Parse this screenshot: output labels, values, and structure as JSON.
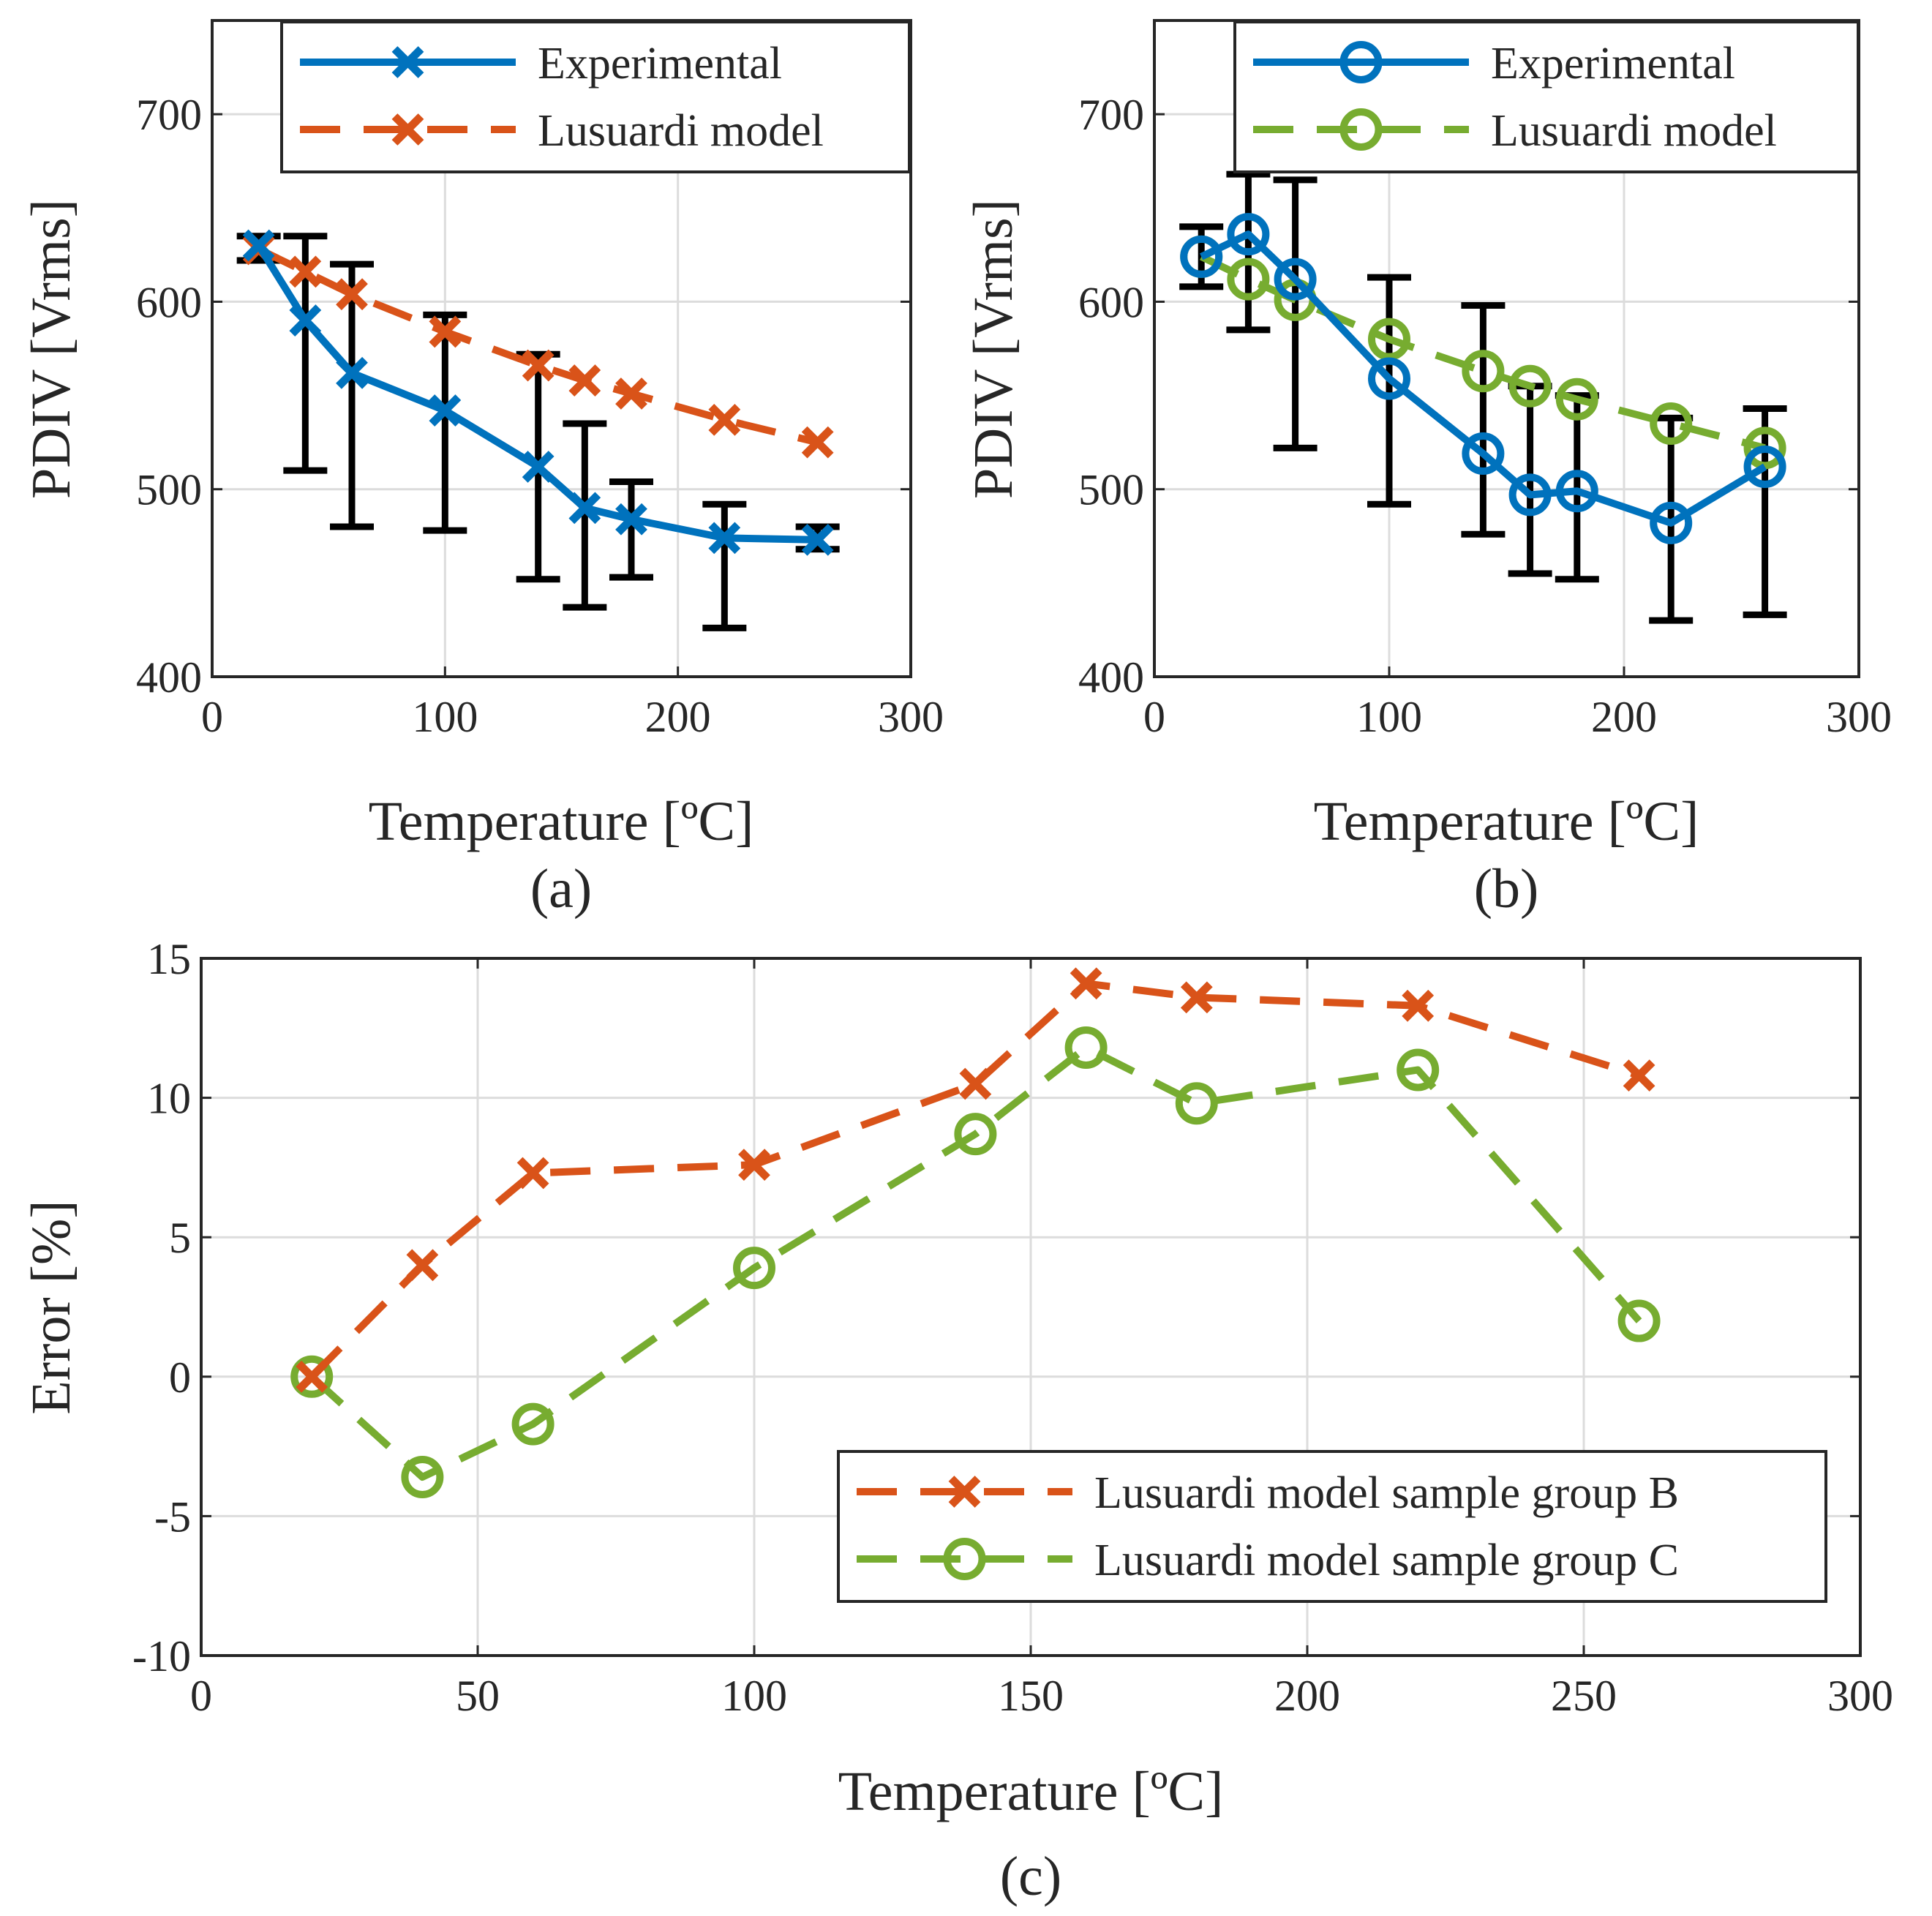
{
  "colors": {
    "blue": "#0072BD",
    "orange": "#D95319",
    "green": "#77AC30",
    "errorbar": "#000000",
    "grid": "#dcdcdc",
    "axis": "#262626"
  },
  "chart_data": [
    {
      "id": "a",
      "type": "line",
      "panel_label": "(a)",
      "xlabel": "Temperature [ºC]",
      "ylabel": "PDIV [Vrms]",
      "xlim": [
        0,
        300
      ],
      "ylim": [
        400,
        750
      ],
      "xticks": [
        0,
        100,
        200,
        300
      ],
      "yticks": [
        400,
        500,
        600,
        700
      ],
      "grid": true,
      "legend_position": "top-right",
      "series": [
        {
          "name": "Experimental",
          "style": "solid",
          "marker": "x",
          "color": "#0072BD",
          "x": [
            20,
            40,
            60,
            100,
            140,
            160,
            180,
            220,
            260
          ],
          "y": [
            630,
            590,
            562,
            542,
            512,
            490,
            484,
            474,
            473
          ],
          "err_low": [
            622,
            510,
            480,
            478,
            452,
            437,
            453,
            426,
            468
          ],
          "err_high": [
            635,
            635,
            620,
            593,
            572,
            535,
            504,
            492,
            480
          ]
        },
        {
          "name": "Lusuardi model",
          "style": "dashed",
          "marker": "x",
          "color": "#D95319",
          "x": [
            20,
            40,
            60,
            100,
            140,
            160,
            180,
            220,
            260
          ],
          "y": [
            628,
            616,
            604,
            584,
            566,
            558,
            551,
            537,
            525
          ]
        }
      ]
    },
    {
      "id": "b",
      "type": "line",
      "panel_label": "(b)",
      "xlabel": "Temperature [ºC]",
      "ylabel": "PDIV [Vrms]",
      "xlim": [
        0,
        300
      ],
      "ylim": [
        400,
        750
      ],
      "xticks": [
        0,
        100,
        200,
        300
      ],
      "yticks": [
        400,
        500,
        600,
        700
      ],
      "grid": true,
      "legend_position": "top-right",
      "series": [
        {
          "name": "Experimental",
          "style": "solid",
          "marker": "o",
          "color": "#0072BD",
          "x": [
            20,
            40,
            60,
            100,
            140,
            160,
            180,
            220,
            260
          ],
          "y": [
            624,
            636,
            612,
            559,
            519,
            497,
            499,
            482,
            512
          ],
          "err_low": [
            608,
            585,
            522,
            492,
            476,
            455,
            452,
            430,
            433
          ],
          "err_high": [
            640,
            668,
            665,
            613,
            598,
            555,
            550,
            538,
            543
          ]
        },
        {
          "name": "Lusuardi model",
          "style": "dashed",
          "marker": "o",
          "color": "#77AC30",
          "x": [
            20,
            40,
            60,
            100,
            140,
            160,
            180,
            220,
            260
          ],
          "y": [
            624,
            612,
            601,
            580,
            563,
            555,
            548,
            535,
            522
          ]
        }
      ]
    },
    {
      "id": "c",
      "type": "line",
      "panel_label": "(c)",
      "xlabel": "Temperature [ºC]",
      "ylabel": "Error [%]",
      "xlim": [
        0,
        300
      ],
      "ylim": [
        -10,
        15
      ],
      "xticks": [
        0,
        50,
        100,
        150,
        200,
        250,
        300
      ],
      "yticks": [
        -10,
        -5,
        0,
        5,
        10,
        15
      ],
      "grid": true,
      "legend_position": "lower-right",
      "series": [
        {
          "name": "Lusuardi model sample group B",
          "style": "dashed",
          "marker": "x",
          "color": "#D95319",
          "x": [
            20,
            40,
            60,
            100,
            140,
            160,
            180,
            220,
            260
          ],
          "y": [
            0,
            4.0,
            7.3,
            7.6,
            10.5,
            14.1,
            13.6,
            13.3,
            10.8
          ]
        },
        {
          "name": "Lusuardi model sample group C",
          "style": "dashed",
          "marker": "o",
          "color": "#77AC30",
          "x": [
            20,
            40,
            60,
            100,
            140,
            160,
            180,
            220,
            260
          ],
          "y": [
            0,
            -3.6,
            -1.7,
            3.9,
            8.7,
            11.8,
            9.8,
            11.0,
            2.0
          ]
        }
      ]
    }
  ]
}
